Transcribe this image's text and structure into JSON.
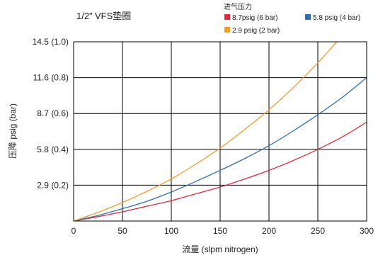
{
  "chart_data": {
    "type": "line",
    "title": "1/2” VFS垫圈",
    "xlabel": "流量 (slpm nitrogen)",
    "ylabel": "压降 psig (bar)",
    "xlim": [
      0,
      300
    ],
    "ylim": [
      0,
      14.5
    ],
    "xticks": [
      0,
      50,
      100,
      150,
      200,
      250,
      300
    ],
    "xtick_labels": [
      "0",
      "50",
      "100",
      "150",
      "200",
      "250",
      "300"
    ],
    "yticks": [
      2.9,
      5.8,
      8.7,
      11.6,
      14.5
    ],
    "ytick_labels": [
      "2.9 (0.2)",
      "5.8 (0.4)",
      "8.7 (0.6)",
      "11.6 (0.8)",
      "14.5 (1.0)"
    ],
    "grid": true,
    "legend": {
      "title": "进气压力",
      "placement": "top-right",
      "entries": [
        "8.7psig (6 bar)",
        "5.8 psig (4 bar)",
        "2.9 psig (2 bar)"
      ]
    },
    "x": [
      0,
      25,
      50,
      75,
      100,
      125,
      150,
      175,
      200,
      225,
      250,
      275,
      300
    ],
    "series": [
      {
        "name": "8.7psig (6 bar)",
        "color": "#e02b3c",
        "x": [
          0,
          25,
          50,
          75,
          100,
          125,
          150,
          175,
          200,
          225,
          250,
          275,
          300
        ],
        "values": [
          0,
          0.35,
          0.75,
          1.2,
          1.65,
          2.2,
          2.75,
          3.4,
          4.1,
          4.9,
          5.8,
          6.8,
          8.0
        ]
      },
      {
        "name": "5.8 psig (4 bar)",
        "color": "#2f6fb0",
        "x": [
          0,
          25,
          50,
          75,
          100,
          125,
          150,
          175,
          200,
          225,
          250,
          275,
          300
        ],
        "values": [
          0,
          0.45,
          1.0,
          1.6,
          2.35,
          3.2,
          4.1,
          5.05,
          6.1,
          7.3,
          8.6,
          10.0,
          11.6
        ]
      },
      {
        "name": "2.9 psig (2 bar)",
        "color": "#f39c27",
        "x": [
          0,
          25,
          50,
          75,
          100,
          125,
          150,
          175,
          200,
          225,
          250,
          275
        ],
        "values": [
          0,
          0.7,
          1.5,
          2.4,
          3.4,
          4.6,
          5.9,
          7.4,
          9.0,
          10.8,
          12.8,
          15.0
        ]
      }
    ]
  }
}
